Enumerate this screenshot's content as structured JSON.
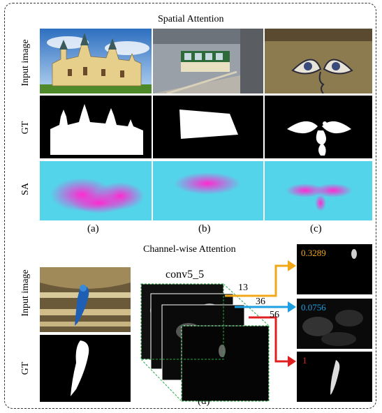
{
  "top": {
    "title": "Spatial Attention",
    "rows": {
      "input": "Input image",
      "gt": "GT",
      "sa": "SA"
    },
    "panels": [
      "(a)",
      "(b)",
      "(c)"
    ]
  },
  "bottom": {
    "title": "Channel-wise Attention",
    "rows": {
      "input": "Input image",
      "gt": "GT"
    },
    "layer": "conv5_5",
    "channels": [
      {
        "index": "13",
        "score": "0.3289",
        "color": "#f0a818"
      },
      {
        "index": "36",
        "score": "0.0756",
        "color": "#1e9fe0"
      },
      {
        "index": "56",
        "score": "1",
        "color": "#e02020"
      }
    ],
    "panel": "(d)"
  },
  "colors": {
    "sa_background": "#3fe3e9",
    "sa_highlight": "#ff2ad0",
    "cube_edge": "#22aa44"
  }
}
